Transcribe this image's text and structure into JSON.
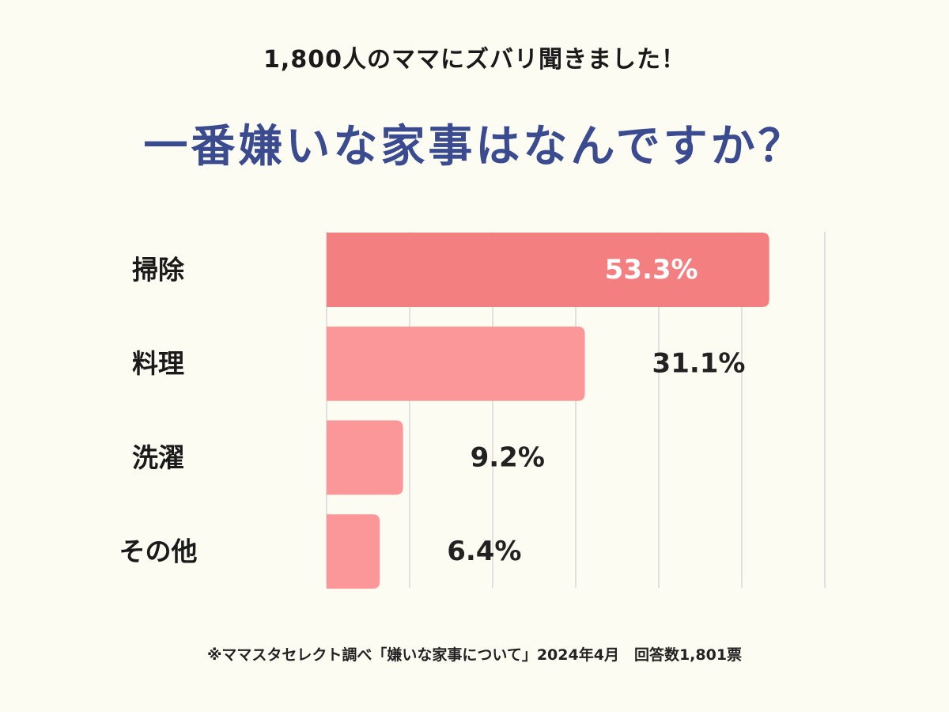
{
  "subtitle": "1,800人のママにズバリ聞きました！",
  "title": "一番嫌いな家事はなんですか？",
  "chart_data": {
    "type": "bar",
    "orientation": "horizontal",
    "categories": [
      "掃除",
      "料理",
      "洗濯",
      "その他"
    ],
    "values": [
      53.3,
      31.1,
      9.2,
      6.4
    ],
    "value_labels": [
      "53.3%",
      "31.1%",
      "9.2%",
      "6.4%"
    ],
    "xlim": [
      0,
      60
    ],
    "grid": true,
    "highlight_color": "#f47f81",
    "bar_color": "#fc9799",
    "highlight_label_color": "#ffffff",
    "label_color": "#222222"
  },
  "footnote": "※ママスタセレクト調べ「嫌いな家事について」2024年4月　回答数1,801票"
}
